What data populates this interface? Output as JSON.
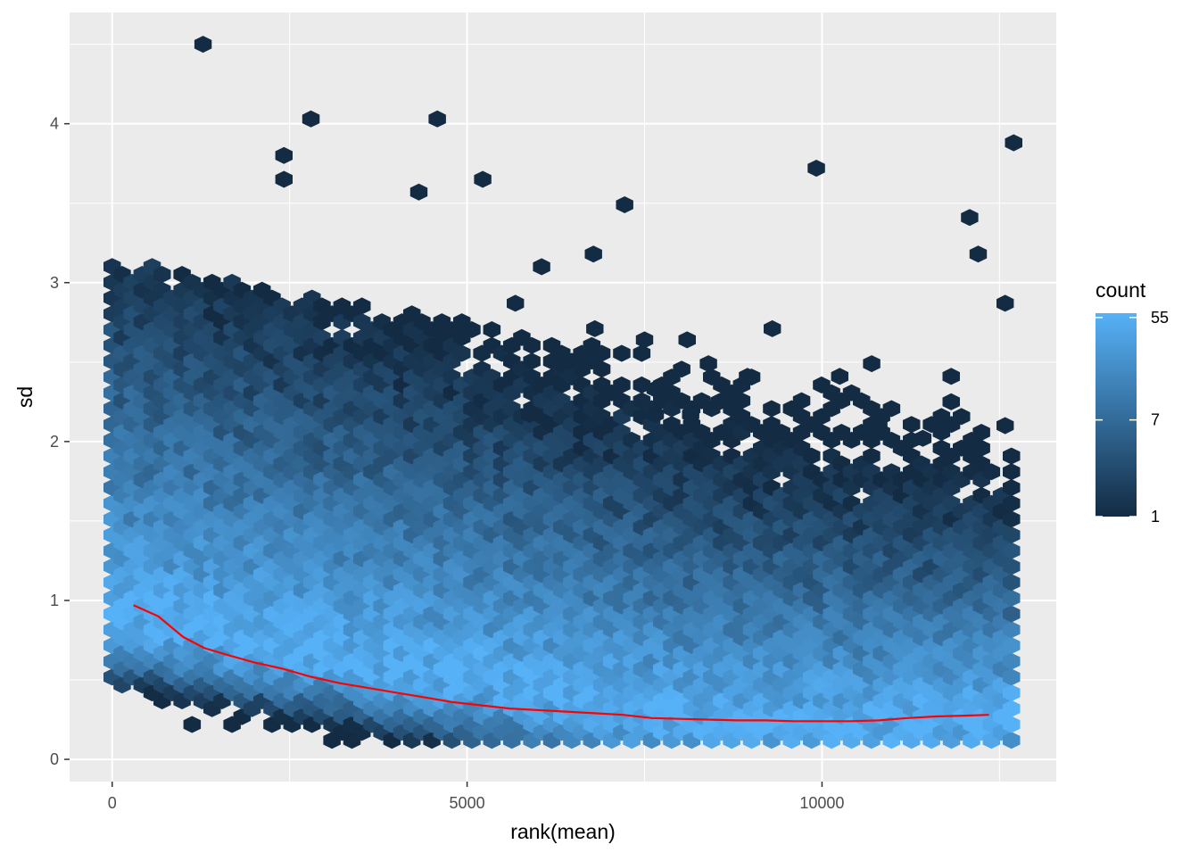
{
  "chart_data": {
    "type": "hexbin",
    "title": "",
    "xlabel": "rank(mean)",
    "ylabel": "sd",
    "xlim": [
      -600,
      13300
    ],
    "ylim": [
      -0.14,
      4.7
    ],
    "x_ticks": [
      0,
      5000,
      10000
    ],
    "x_tick_labels": [
      "0",
      "5000",
      "10000"
    ],
    "y_ticks": [
      0,
      1,
      2,
      3,
      4
    ],
    "y_tick_labels": [
      "0",
      "1",
      "2",
      "3",
      "4"
    ],
    "grid": true,
    "panel_background": "#ebebeb",
    "legend": {
      "title": "count",
      "position": "right",
      "scale": "log",
      "ticks": [
        1,
        7,
        55
      ],
      "tick_labels": [
        "1",
        "7",
        "55"
      ],
      "color_low": "#132b43",
      "color_high": "#56b1f7"
    },
    "hexbin": {
      "x_range": [
        0,
        12700
      ],
      "y_range": [
        0.1,
        4.5
      ],
      "description_density": "count per hexagon, high near sd 0.2-0.6 across all ranks, decaying with sd"
    },
    "outlier_points": [
      {
        "x": 1280,
        "y": 4.5
      },
      {
        "x": 2800,
        "y": 4.03
      },
      {
        "x": 4580,
        "y": 4.03
      },
      {
        "x": 2420,
        "y": 3.8
      },
      {
        "x": 2420,
        "y": 3.65
      },
      {
        "x": 5220,
        "y": 3.65
      },
      {
        "x": 4320,
        "y": 3.57
      },
      {
        "x": 7220,
        "y": 3.49
      },
      {
        "x": 9920,
        "y": 3.72
      },
      {
        "x": 12700,
        "y": 3.88
      },
      {
        "x": 12080,
        "y": 3.41
      },
      {
        "x": 12200,
        "y": 3.18
      },
      {
        "x": 12580,
        "y": 2.87
      },
      {
        "x": 9300,
        "y": 2.71
      },
      {
        "x": 7500,
        "y": 2.64
      },
      {
        "x": 8100,
        "y": 2.64
      },
      {
        "x": 6300,
        "y": 2.49
      },
      {
        "x": 10700,
        "y": 2.49
      },
      {
        "x": 6780,
        "y": 3.18
      },
      {
        "x": 6050,
        "y": 3.1
      },
      {
        "x": 5680,
        "y": 2.87
      },
      {
        "x": 6800,
        "y": 2.71
      },
      {
        "x": 5880,
        "y": 2.17
      },
      {
        "x": 7650,
        "y": 2.33
      },
      {
        "x": 7650,
        "y": 2.17
      },
      {
        "x": 8150,
        "y": 2.17
      },
      {
        "x": 8550,
        "y": 2.25
      },
      {
        "x": 8400,
        "y": 2.49
      },
      {
        "x": 8950,
        "y": 2.41
      },
      {
        "x": 10250,
        "y": 2.41
      },
      {
        "x": 11820,
        "y": 2.41
      },
      {
        "x": 11820,
        "y": 2.25
      },
      {
        "x": 12580,
        "y": 2.1
      },
      {
        "x": 10800,
        "y": 2.1
      },
      {
        "x": 11420,
        "y": 2.02
      }
    ],
    "smooth_line": {
      "color": "#ff0000",
      "x": [
        300,
        650,
        1000,
        1300,
        1600,
        2000,
        2400,
        2800,
        3200,
        3600,
        4000,
        4400,
        4800,
        5200,
        5600,
        6000,
        6400,
        6800,
        7200,
        7600,
        8000,
        8400,
        8800,
        9200,
        9600,
        10000,
        10400,
        10800,
        11200,
        11600,
        12000,
        12350
      ],
      "y": [
        0.97,
        0.9,
        0.77,
        0.7,
        0.66,
        0.61,
        0.57,
        0.52,
        0.48,
        0.45,
        0.42,
        0.39,
        0.36,
        0.34,
        0.32,
        0.31,
        0.3,
        0.29,
        0.28,
        0.26,
        0.255,
        0.25,
        0.245,
        0.245,
        0.24,
        0.24,
        0.24,
        0.245,
        0.26,
        0.27,
        0.275,
        0.28
      ]
    }
  }
}
